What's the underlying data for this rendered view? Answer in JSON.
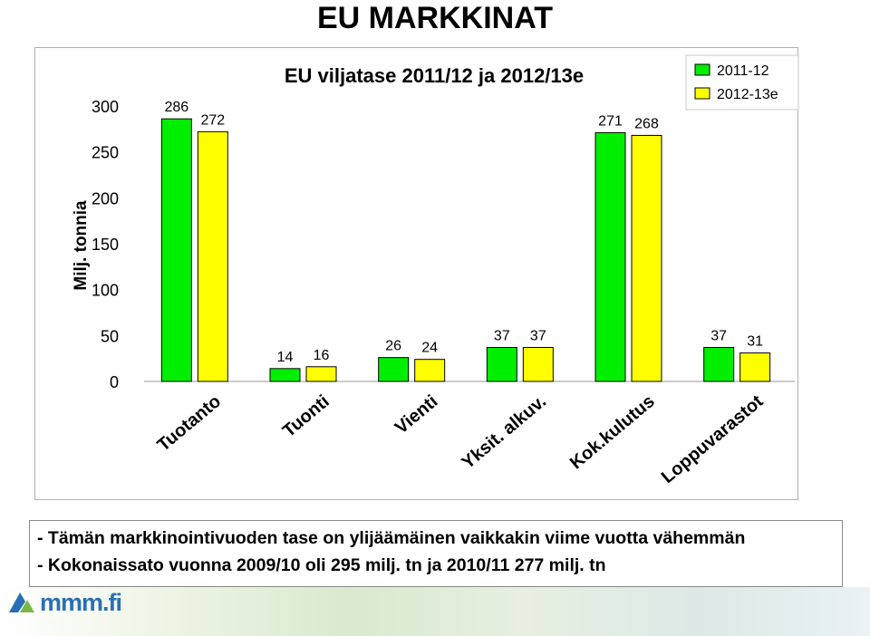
{
  "slide": {
    "title": "EU MARKKINAT",
    "bullets": [
      "- Tämän markkinointivuoden tase on ylijäämäinen vaikkakin viime vuotta vähemmän",
      "- Kokonaissato vuonna 2009/10 oli 295 milj. tn ja 2010/11 277 milj. tn"
    ],
    "logo_text": "mmm.fi"
  },
  "chart_data": {
    "type": "bar",
    "title": "EU viljatase 2011/12 ja 2012/13e",
    "ylabel": "Milj. tonnia",
    "xlabel": "",
    "ylim": [
      0,
      300
    ],
    "yticks": [
      0,
      50,
      100,
      150,
      200,
      250,
      300
    ],
    "grid": false,
    "legend_position": "top-right",
    "categories": [
      "Tuotanto",
      "Tuonti",
      "Vienti",
      "Yksit. alkuv.",
      "Kok.kulutus",
      "Loppuvarastot"
    ],
    "series": [
      {
        "name": "2011-12",
        "values": [
          286,
          14,
          26,
          37,
          271,
          37
        ],
        "color": "#00ee00"
      },
      {
        "name": "2012-13e",
        "values": [
          272,
          16,
          24,
          37,
          268,
          31
        ],
        "color": "#ffff00"
      }
    ]
  }
}
